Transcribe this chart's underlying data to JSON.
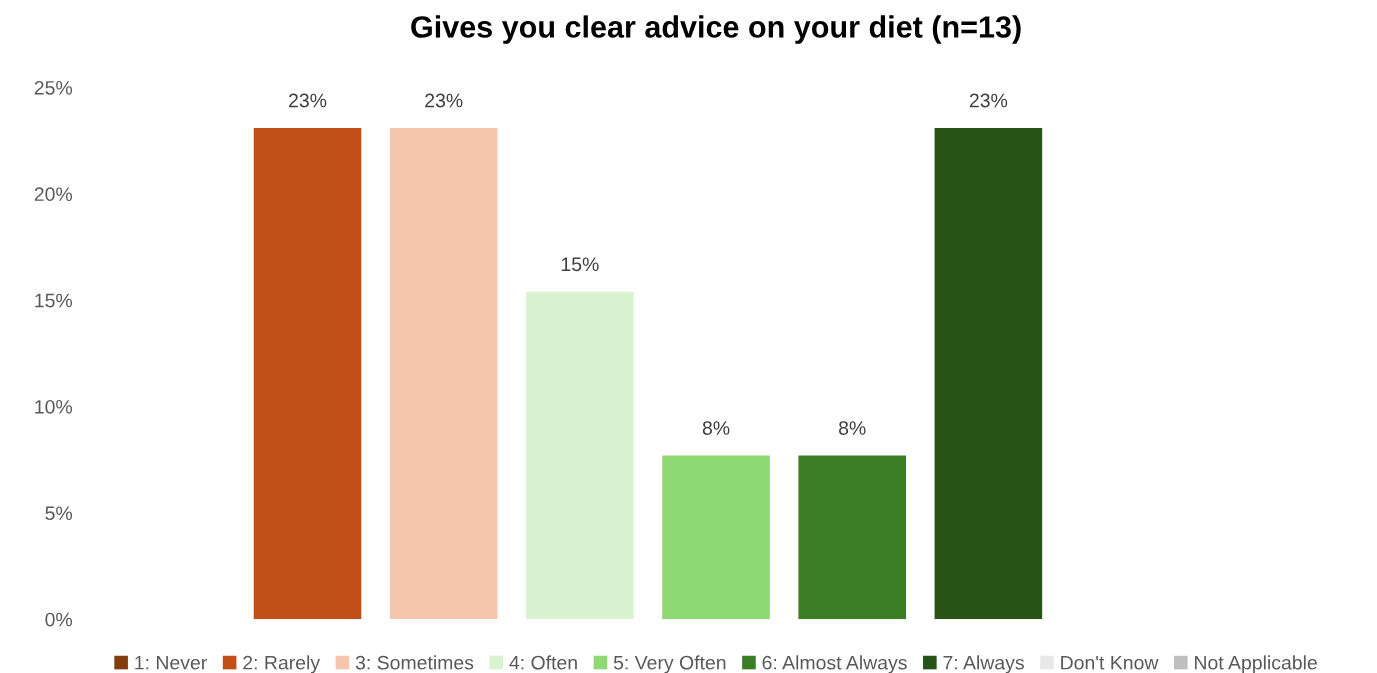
{
  "chart_data": {
    "type": "bar",
    "title": "Gives you clear advice on your diet (n=13)",
    "categories": [
      "1: Never",
      "2: Rarely",
      "3: Sometimes",
      "4: Often",
      "5: Very Often",
      "6: Almost Always",
      "7: Always",
      "Don't Know",
      "Not Applicable"
    ],
    "values": [
      0,
      23.1,
      23.1,
      15.4,
      7.7,
      7.7,
      23.1,
      0,
      0
    ],
    "value_labels": [
      null,
      "23%",
      "23%",
      "15%",
      "8%",
      "8%",
      "23%",
      null,
      null
    ],
    "colors": [
      "#843c0c",
      "#c05016",
      "#f5c6ac",
      "#d9f2d0",
      "#8ed973",
      "#3b7d23",
      "#275317",
      "#e8e8e8",
      "#bfbfbf"
    ],
    "ylim": [
      0,
      25
    ],
    "yticks": [
      {
        "value": 0,
        "label": "0%"
      },
      {
        "value": 5,
        "label": "5%"
      },
      {
        "value": 10,
        "label": "10%"
      },
      {
        "value": 15,
        "label": "15%"
      },
      {
        "value": 20,
        "label": "20%"
      },
      {
        "value": 25,
        "label": "25%"
      }
    ],
    "tick_labels": "y",
    "grid": false
  }
}
